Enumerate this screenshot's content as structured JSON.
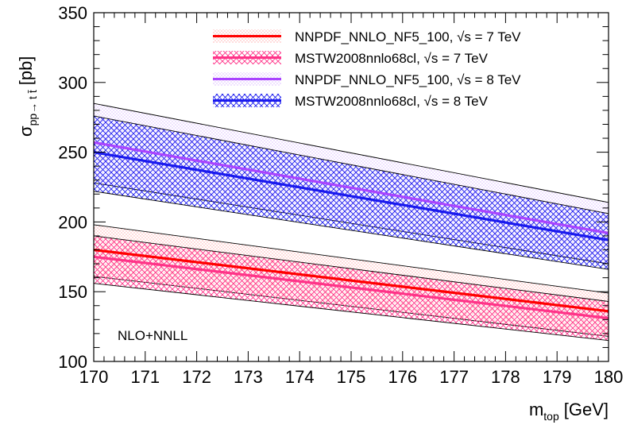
{
  "chart_data": {
    "type": "area",
    "xlabel_main": "m",
    "xlabel_sub": "top",
    "xlabel_unit": "[GeV]",
    "ylabel_main": "σ",
    "ylabel_sub": "pp→ t t̄",
    "ylabel_unit": "[pb]",
    "xlim": [
      170,
      180
    ],
    "ylim": [
      100,
      350
    ],
    "xticks": [
      "170",
      "171",
      "172",
      "173",
      "174",
      "175",
      "176",
      "177",
      "178",
      "179",
      "180"
    ],
    "yticks": [
      "100",
      "150",
      "200",
      "250",
      "300",
      "350"
    ],
    "annotation": "NLO+NNLL",
    "x": [
      170,
      180
    ],
    "series": [
      {
        "name": "NNPDF_NNLO_NF5_100, √s = 7 TeV",
        "color": "#ff0000",
        "fill": "dots",
        "central": [
          180,
          136
        ],
        "upper": [
          198,
          149
        ],
        "lower": [
          161,
          118
        ]
      },
      {
        "name": "MSTW2008nnlo68cl, √s = 7 TeV",
        "color": "#ff3388",
        "fill": "crosshatch",
        "central": [
          175,
          131
        ],
        "upper": [
          190,
          143
        ],
        "lower": [
          156,
          115
        ]
      },
      {
        "name": "NNPDF_NNLO_NF5_100, √s = 8 TeV",
        "color": "#aa44ff",
        "fill": "dots",
        "central": [
          257,
          192
        ],
        "upper": [
          285,
          214
        ],
        "lower": [
          228,
          170
        ]
      },
      {
        "name": "MSTW2008nnlo68cl, √s = 8 TeV",
        "color": "#1a1aee",
        "fill": "crosshatch",
        "central": [
          250,
          187
        ],
        "upper": [
          276,
          206
        ],
        "lower": [
          222,
          166
        ]
      }
    ],
    "legend_position": "top-right",
    "legend_names": {
      "s1_prefix": "NNPDF_NNLO_NF5_100,",
      "s2_prefix": "MSTW2008nnlo68cl,",
      "s3_prefix": "NNPDF_NNLO_NF5_100,",
      "s4_prefix": "MSTW2008nnlo68cl,",
      "root": "√s",
      "s1_energy": "= 7 TeV",
      "s2_energy": "= 7 TeV",
      "s3_energy": "= 8 TeV",
      "s4_energy": "= 8 TeV"
    }
  }
}
